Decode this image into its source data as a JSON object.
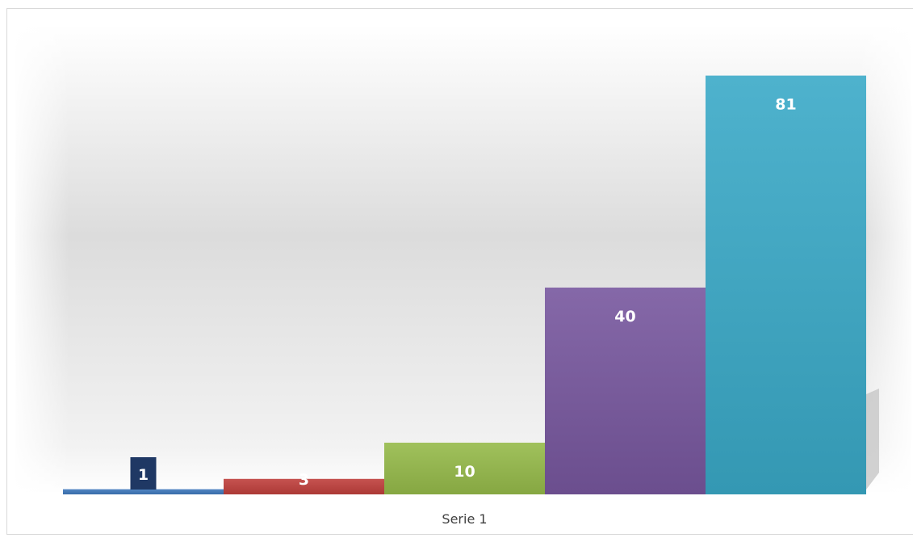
{
  "chart_data": {
    "type": "bar",
    "categories": [
      "Serie 1"
    ],
    "series": [
      {
        "value": 1,
        "label": "1",
        "color": "#4a7ebb"
      },
      {
        "value": 3,
        "label": "3",
        "color": "#be4b48"
      },
      {
        "value": 10,
        "label": "10",
        "color": "#98b954"
      },
      {
        "value": 40,
        "label": "40",
        "color": "#7d60a0"
      },
      {
        "value": 81,
        "label": "81",
        "color": "#46aac5"
      }
    ],
    "ylim": [
      0,
      90
    ],
    "grid": false,
    "legend": "none",
    "label_background_first": "#1f3864"
  }
}
